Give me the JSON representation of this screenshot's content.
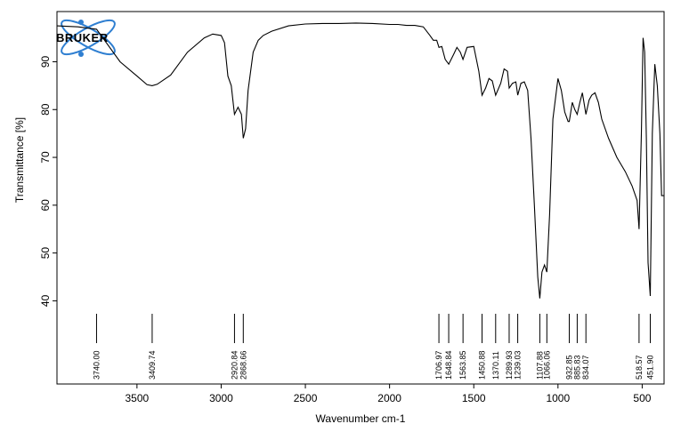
{
  "chart_data": {
    "type": "line",
    "title": "",
    "xlabel": "Wavenumber cm-1",
    "ylabel": "Transmittance [%]",
    "xlim": [
      3975,
      370
    ],
    "ylim": [
      22.6,
      100.5
    ],
    "x_reversed": true,
    "grid": false,
    "logo_text": "BRUKER",
    "colors": {
      "line": "#000000",
      "logo_accent": "#2f7fd1"
    },
    "x_ticks": [
      3500,
      3000,
      2500,
      2000,
      1500,
      1000,
      500
    ],
    "x_tick_labels": [
      "3500",
      "3000",
      "2500",
      "2000",
      "1500",
      "1000",
      "500"
    ],
    "y_ticks": [
      40,
      50,
      60,
      70,
      80,
      90
    ],
    "y_tick_labels": [
      "40",
      "50",
      "60",
      "70",
      "80",
      "90"
    ],
    "series": [
      {
        "x": [
          3975,
          3850,
          3740,
          3600,
          3500,
          3440,
          3409.74,
          3380,
          3300,
          3200,
          3100,
          3050,
          3000,
          2980,
          2960,
          2940,
          2920.84,
          2900,
          2880,
          2868.66,
          2855,
          2840,
          2810,
          2780,
          2750,
          2700,
          2600,
          2500,
          2400,
          2300,
          2200,
          2100,
          2000,
          1950,
          1900,
          1850,
          1800,
          1760,
          1740,
          1720,
          1706.97,
          1690,
          1670,
          1648.84,
          1620,
          1600,
          1580,
          1563.85,
          1540,
          1500,
          1470,
          1450.88,
          1430,
          1410,
          1390,
          1370.11,
          1340,
          1320,
          1300,
          1289.93,
          1270,
          1250,
          1239.03,
          1220,
          1200,
          1180,
          1160,
          1140,
          1120,
          1107.88,
          1095,
          1080,
          1066.06,
          1050,
          1030,
          1000,
          980,
          960,
          940,
          932.85,
          915,
          900,
          885.83,
          870,
          855,
          834.07,
          815,
          800,
          780,
          760,
          740,
          700,
          650,
          600,
          560,
          530,
          518.57,
          505,
          495,
          485,
          475,
          465,
          451.9,
          440,
          425,
          410,
          395,
          385,
          375,
          370
        ],
        "y": [
          97.5,
          97.3,
          96.8,
          90,
          87,
          85.2,
          85,
          85.3,
          87.2,
          92,
          95,
          95.8,
          95.5,
          94,
          87,
          85,
          79,
          80.5,
          79,
          74,
          76,
          84,
          92,
          94.5,
          95.5,
          96.4,
          97.5,
          97.9,
          98,
          98,
          98.1,
          98,
          97.8,
          97.8,
          97.6,
          97.6,
          97.3,
          95.5,
          94.5,
          94.5,
          93,
          93.2,
          90.5,
          89.5,
          91.5,
          93,
          92,
          90.5,
          93,
          93.2,
          88,
          83,
          84.5,
          86.5,
          86,
          83,
          85.5,
          88.5,
          88,
          84.5,
          85.5,
          85.8,
          83,
          85.5,
          85.8,
          84,
          74,
          60,
          45,
          40.5,
          46,
          47.5,
          46,
          58,
          78,
          86.5,
          84,
          79.5,
          77.5,
          77.5,
          81.5,
          80,
          79,
          81.5,
          83.5,
          79,
          82,
          83,
          83.5,
          81.5,
          78,
          74,
          70,
          67,
          64,
          61,
          55,
          75,
          95,
          92,
          74,
          48,
          41,
          75,
          89.5,
          85,
          75,
          62,
          62,
          62
        ]
      }
    ],
    "peak_labels": [
      "3740.00",
      "3409.74",
      "2920.84",
      "2868.66",
      "1706.97",
      "1648.84",
      "1563.85",
      "1450.88",
      "1370.11",
      "1289.93",
      "1239.03",
      "1107.88",
      "1066.06",
      "932.85",
      "885.83",
      "834.07",
      "518.57",
      "451.90"
    ],
    "peak_positions": [
      3740.0,
      3409.74,
      2920.84,
      2868.66,
      1706.97,
      1648.84,
      1563.85,
      1450.88,
      1370.11,
      1289.93,
      1239.03,
      1107.88,
      1066.06,
      932.85,
      885.83,
      834.07,
      518.57,
      451.9
    ]
  }
}
